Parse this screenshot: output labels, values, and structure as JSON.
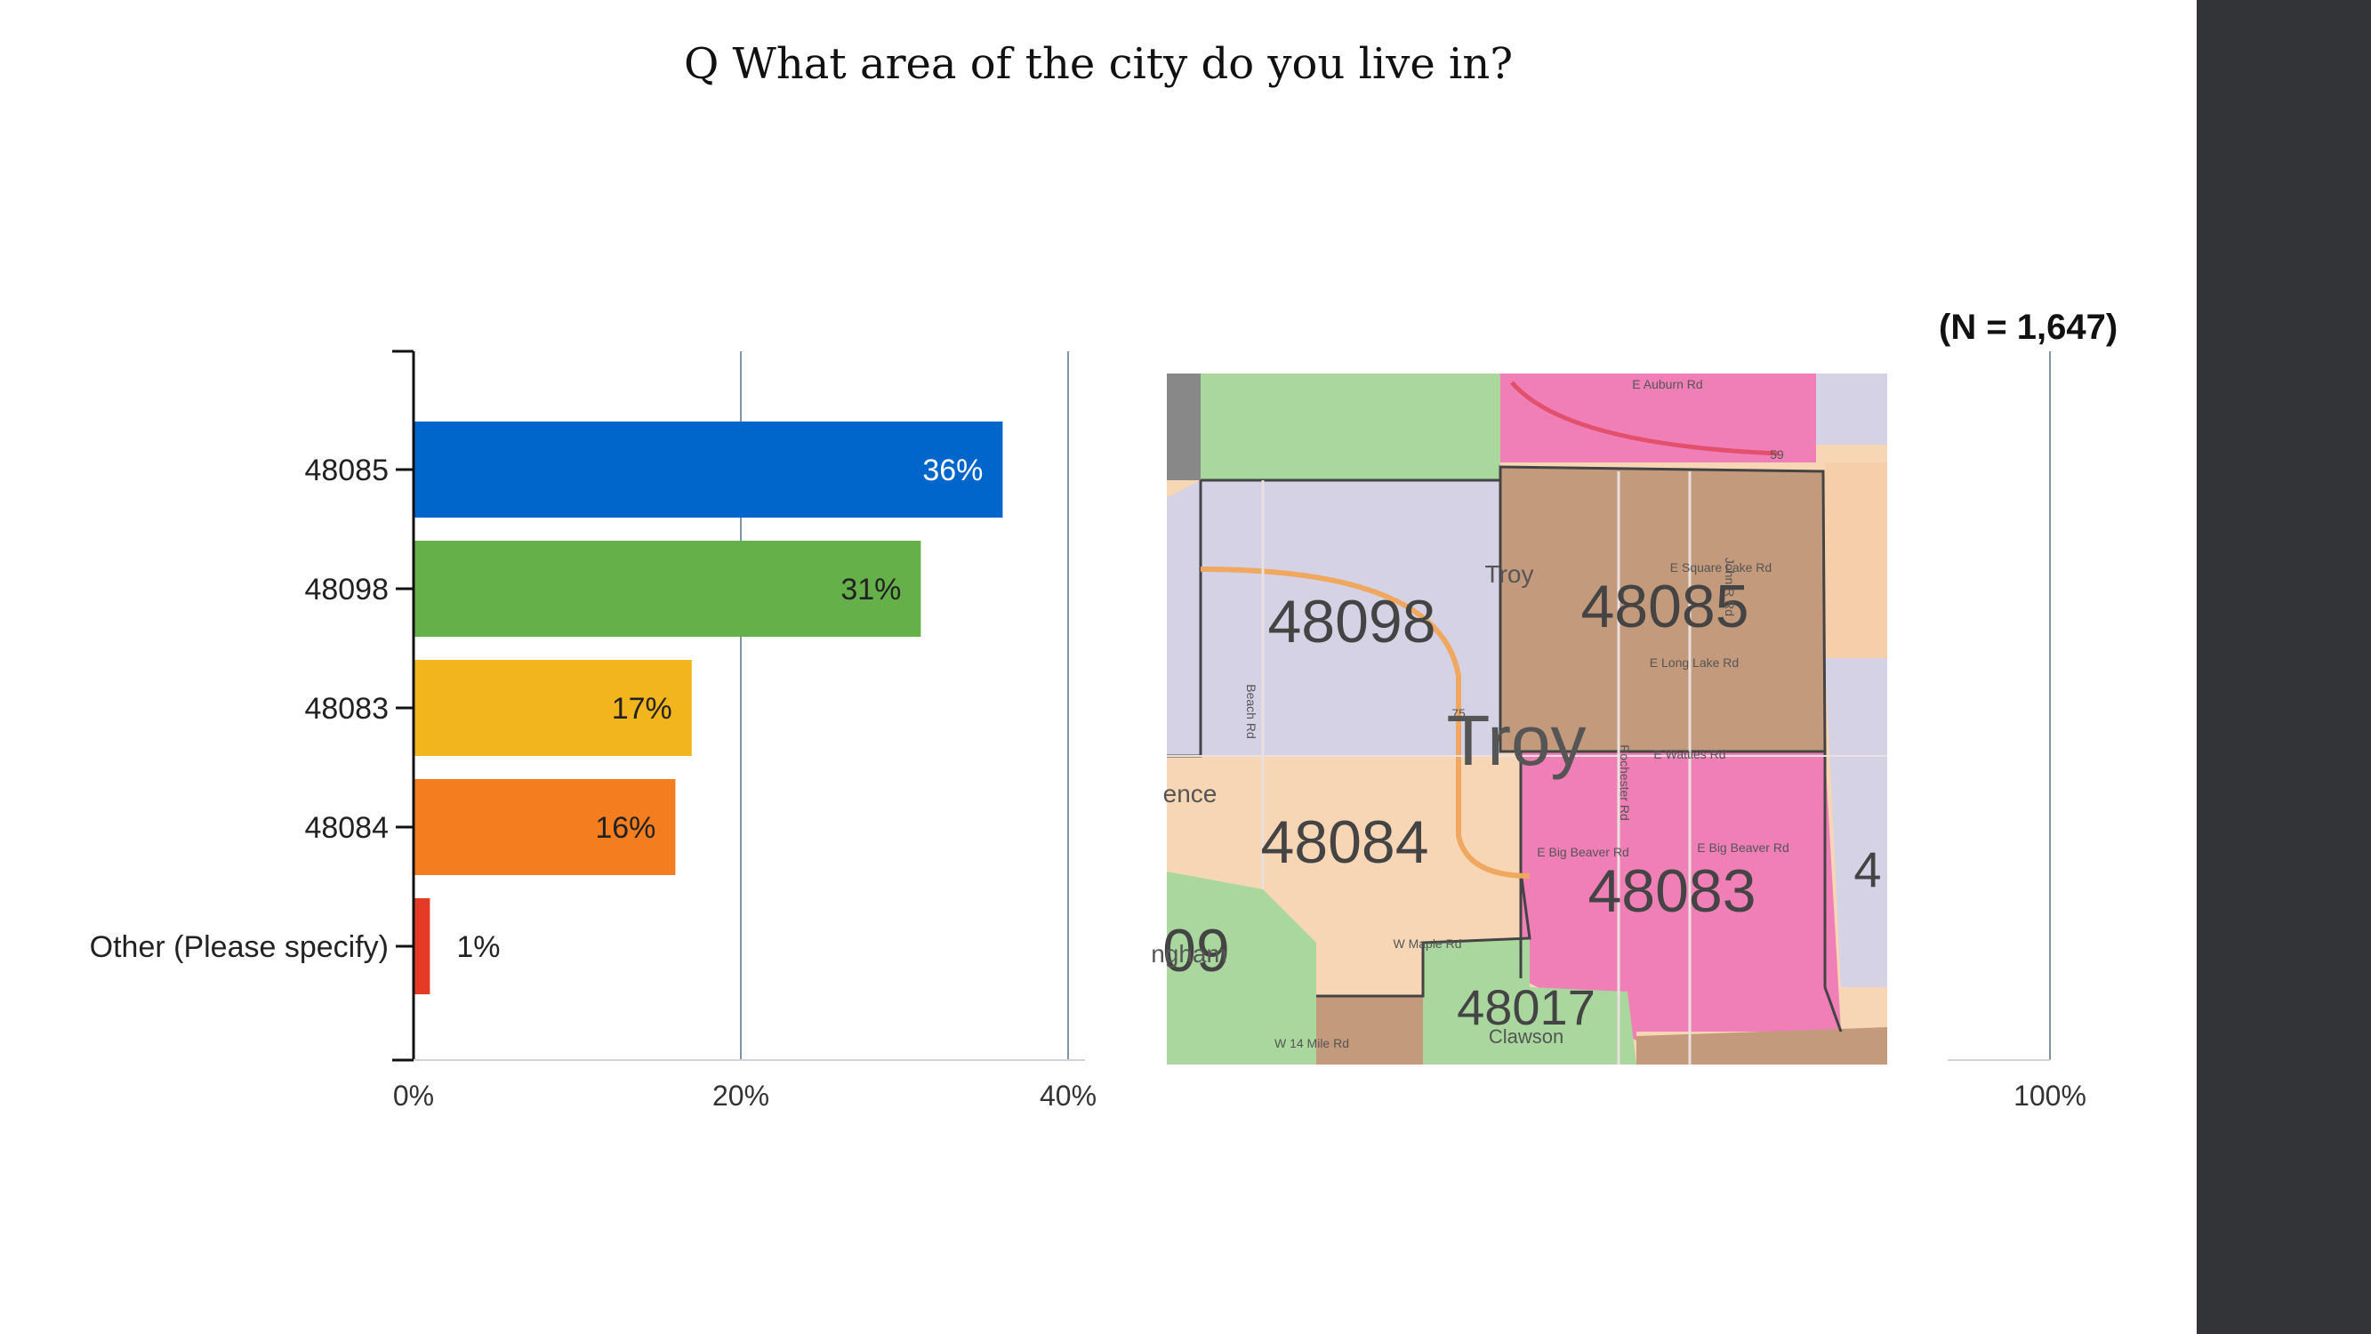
{
  "slide": {
    "question": "Q What area of the city do you live in?",
    "sample_size": "(N = 1,647)"
  },
  "chart_data": {
    "type": "bar",
    "orientation": "horizontal",
    "categories": [
      "48085",
      "48098",
      "48083",
      "48084",
      "Other (Please specify)"
    ],
    "values": [
      36,
      31,
      17,
      16,
      1
    ],
    "data_labels": [
      "36%",
      "31%",
      "17%",
      "16%",
      "1%"
    ],
    "colors": [
      "#0066cc",
      "#66b04a",
      "#f2b51e",
      "#f47d20",
      "#e53a25"
    ],
    "xlim": [
      0,
      100
    ],
    "x_ticks": [
      {
        "value": 0,
        "label": "0%"
      },
      {
        "value": 20,
        "label": "20%"
      },
      {
        "value": 40,
        "label": "40%"
      },
      {
        "value": 100,
        "label": "100%"
      }
    ],
    "grid": true,
    "xlabel": "",
    "ylabel": ""
  },
  "map": {
    "zip_labels": [
      "48098",
      "48085",
      "48084",
      "48083",
      "48017",
      "09",
      "4"
    ],
    "city_label": "Troy",
    "small_labels": [
      "E Auburn Rd",
      "E Square Lake Rd",
      "E Long Lake Rd",
      "E Wattles Rd",
      "E Big Beaver Rd",
      "E Big Beaver Rd",
      "W Maple Rd",
      "W 14 Mile Rd",
      "Clawson",
      "Troy",
      "Rochester Rd",
      "John R Rd",
      "Beach Rd",
      "ence",
      "ngham",
      "59",
      "75"
    ]
  }
}
